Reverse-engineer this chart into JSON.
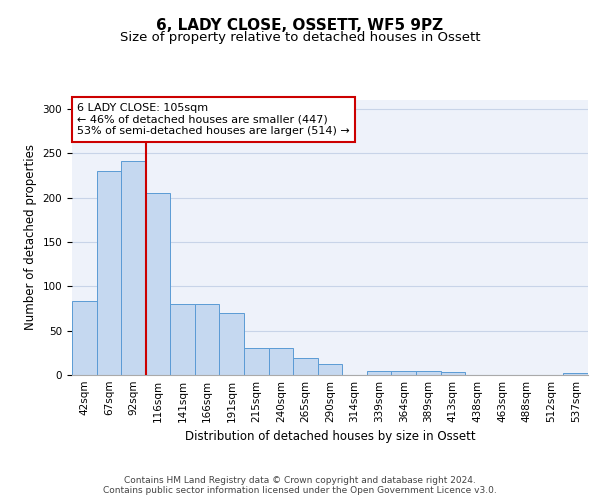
{
  "title": "6, LADY CLOSE, OSSETT, WF5 9PZ",
  "subtitle": "Size of property relative to detached houses in Ossett",
  "xlabel": "Distribution of detached houses by size in Ossett",
  "ylabel": "Number of detached properties",
  "categories": [
    "42sqm",
    "67sqm",
    "92sqm",
    "116sqm",
    "141sqm",
    "166sqm",
    "191sqm",
    "215sqm",
    "240sqm",
    "265sqm",
    "290sqm",
    "314sqm",
    "339sqm",
    "364sqm",
    "389sqm",
    "413sqm",
    "438sqm",
    "463sqm",
    "488sqm",
    "512sqm",
    "537sqm"
  ],
  "values": [
    83,
    230,
    241,
    205,
    80,
    80,
    70,
    30,
    30,
    19,
    12,
    0,
    4,
    4,
    4,
    3,
    0,
    0,
    0,
    0,
    2
  ],
  "bar_color": "#c5d8f0",
  "bar_edge_color": "#5b9bd5",
  "vline_x": 2.5,
  "vline_color": "#cc0000",
  "annotation_text": "6 LADY CLOSE: 105sqm\n← 46% of detached houses are smaller (447)\n53% of semi-detached houses are larger (514) →",
  "annotation_box_color": "#ffffff",
  "annotation_box_edge": "#cc0000",
  "ylim": [
    0,
    310
  ],
  "yticks": [
    0,
    50,
    100,
    150,
    200,
    250,
    300
  ],
  "grid_color": "#c8d4e8",
  "bg_color": "#eef2fa",
  "footer": "Contains HM Land Registry data © Crown copyright and database right 2024.\nContains public sector information licensed under the Open Government Licence v3.0.",
  "title_fontsize": 11,
  "subtitle_fontsize": 9.5,
  "label_fontsize": 8.5,
  "tick_fontsize": 7.5,
  "annotation_fontsize": 8,
  "footer_fontsize": 6.5
}
